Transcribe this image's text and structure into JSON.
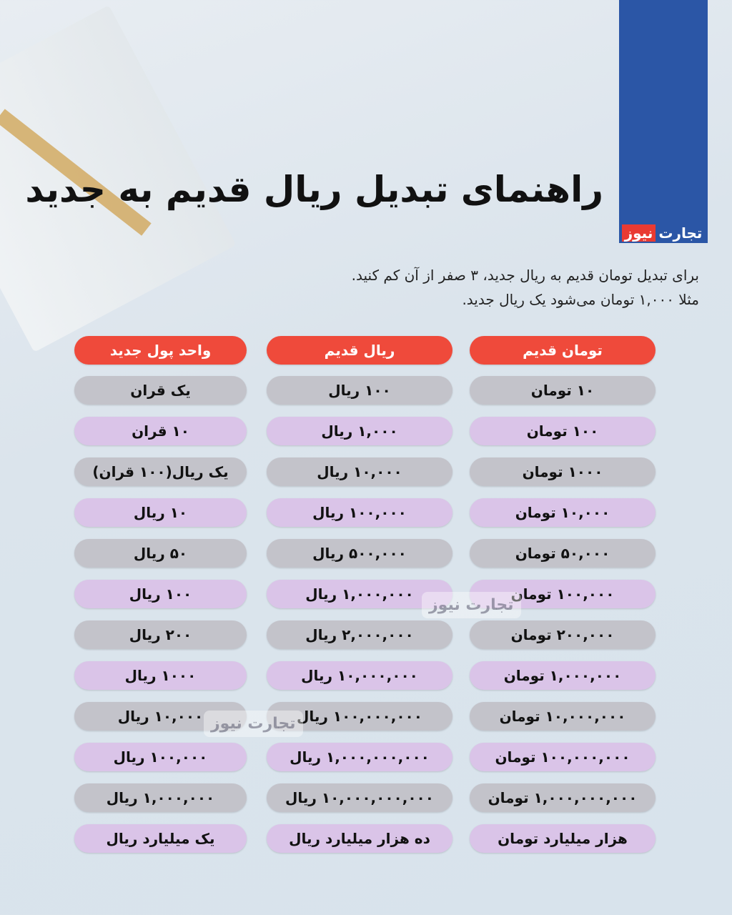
{
  "brand": {
    "logo_part1": "تجارت",
    "logo_part2": "نیوز",
    "blue": "#2b56a6",
    "red": "#e93a32"
  },
  "title": "راهنمای تبدیل ریال قدیم به جدید",
  "intro": {
    "line1": "برای تبدیل تومان قدیم به ریال جدید، ۳ صفر از آن کم کنید.",
    "line2": "مثلا ۱,۰۰۰ تومان می‌شود یک ریال جدید."
  },
  "table": {
    "headers": [
      "تومان قدیم",
      "ریال قدیم",
      "واحد پول جدید"
    ],
    "header_color": "#ef4a3b",
    "rows": [
      [
        "۱۰ تومان",
        "۱۰۰ ریال",
        "یک قران"
      ],
      [
        "۱۰۰ تومان",
        "۱,۰۰۰ ریال",
        "۱۰ قران"
      ],
      [
        "۱۰۰۰ تومان",
        "۱۰,۰۰۰ ریال",
        "یک ریال(۱۰۰ قران)"
      ],
      [
        "۱۰,۰۰۰ تومان",
        "۱۰۰,۰۰۰ ریال",
        "۱۰ ریال"
      ],
      [
        "۵۰,۰۰۰ تومان",
        "۵۰۰,۰۰۰ ریال",
        "۵۰ ریال"
      ],
      [
        "۱۰۰,۰۰۰ تومان",
        "۱,۰۰۰,۰۰۰ ریال",
        "۱۰۰ ریال"
      ],
      [
        "۲۰۰,۰۰۰ تومان",
        "۲,۰۰۰,۰۰۰ ریال",
        "۲۰۰ ریال"
      ],
      [
        "۱,۰۰۰,۰۰۰ تومان",
        "۱۰,۰۰۰,۰۰۰ ریال",
        "۱۰۰۰ ریال"
      ],
      [
        "۱۰,۰۰۰,۰۰۰ تومان",
        "۱۰۰,۰۰۰,۰۰۰ ریال",
        "۱۰,۰۰۰ ریال"
      ],
      [
        "۱۰۰,۰۰۰,۰۰۰ تومان",
        "۱,۰۰۰,۰۰۰,۰۰۰ ریال",
        "۱۰۰,۰۰۰ ریال"
      ],
      [
        "۱,۰۰۰,۰۰۰,۰۰۰ تومان",
        "۱۰,۰۰۰,۰۰۰,۰۰۰ ریال",
        "۱,۰۰۰,۰۰۰ ریال"
      ],
      [
        "هزار میلیارد تومان",
        "ده هزار میلیارد ریال",
        "یک میلیارد ریال"
      ]
    ]
  },
  "watermark": "تجارت نیوز"
}
